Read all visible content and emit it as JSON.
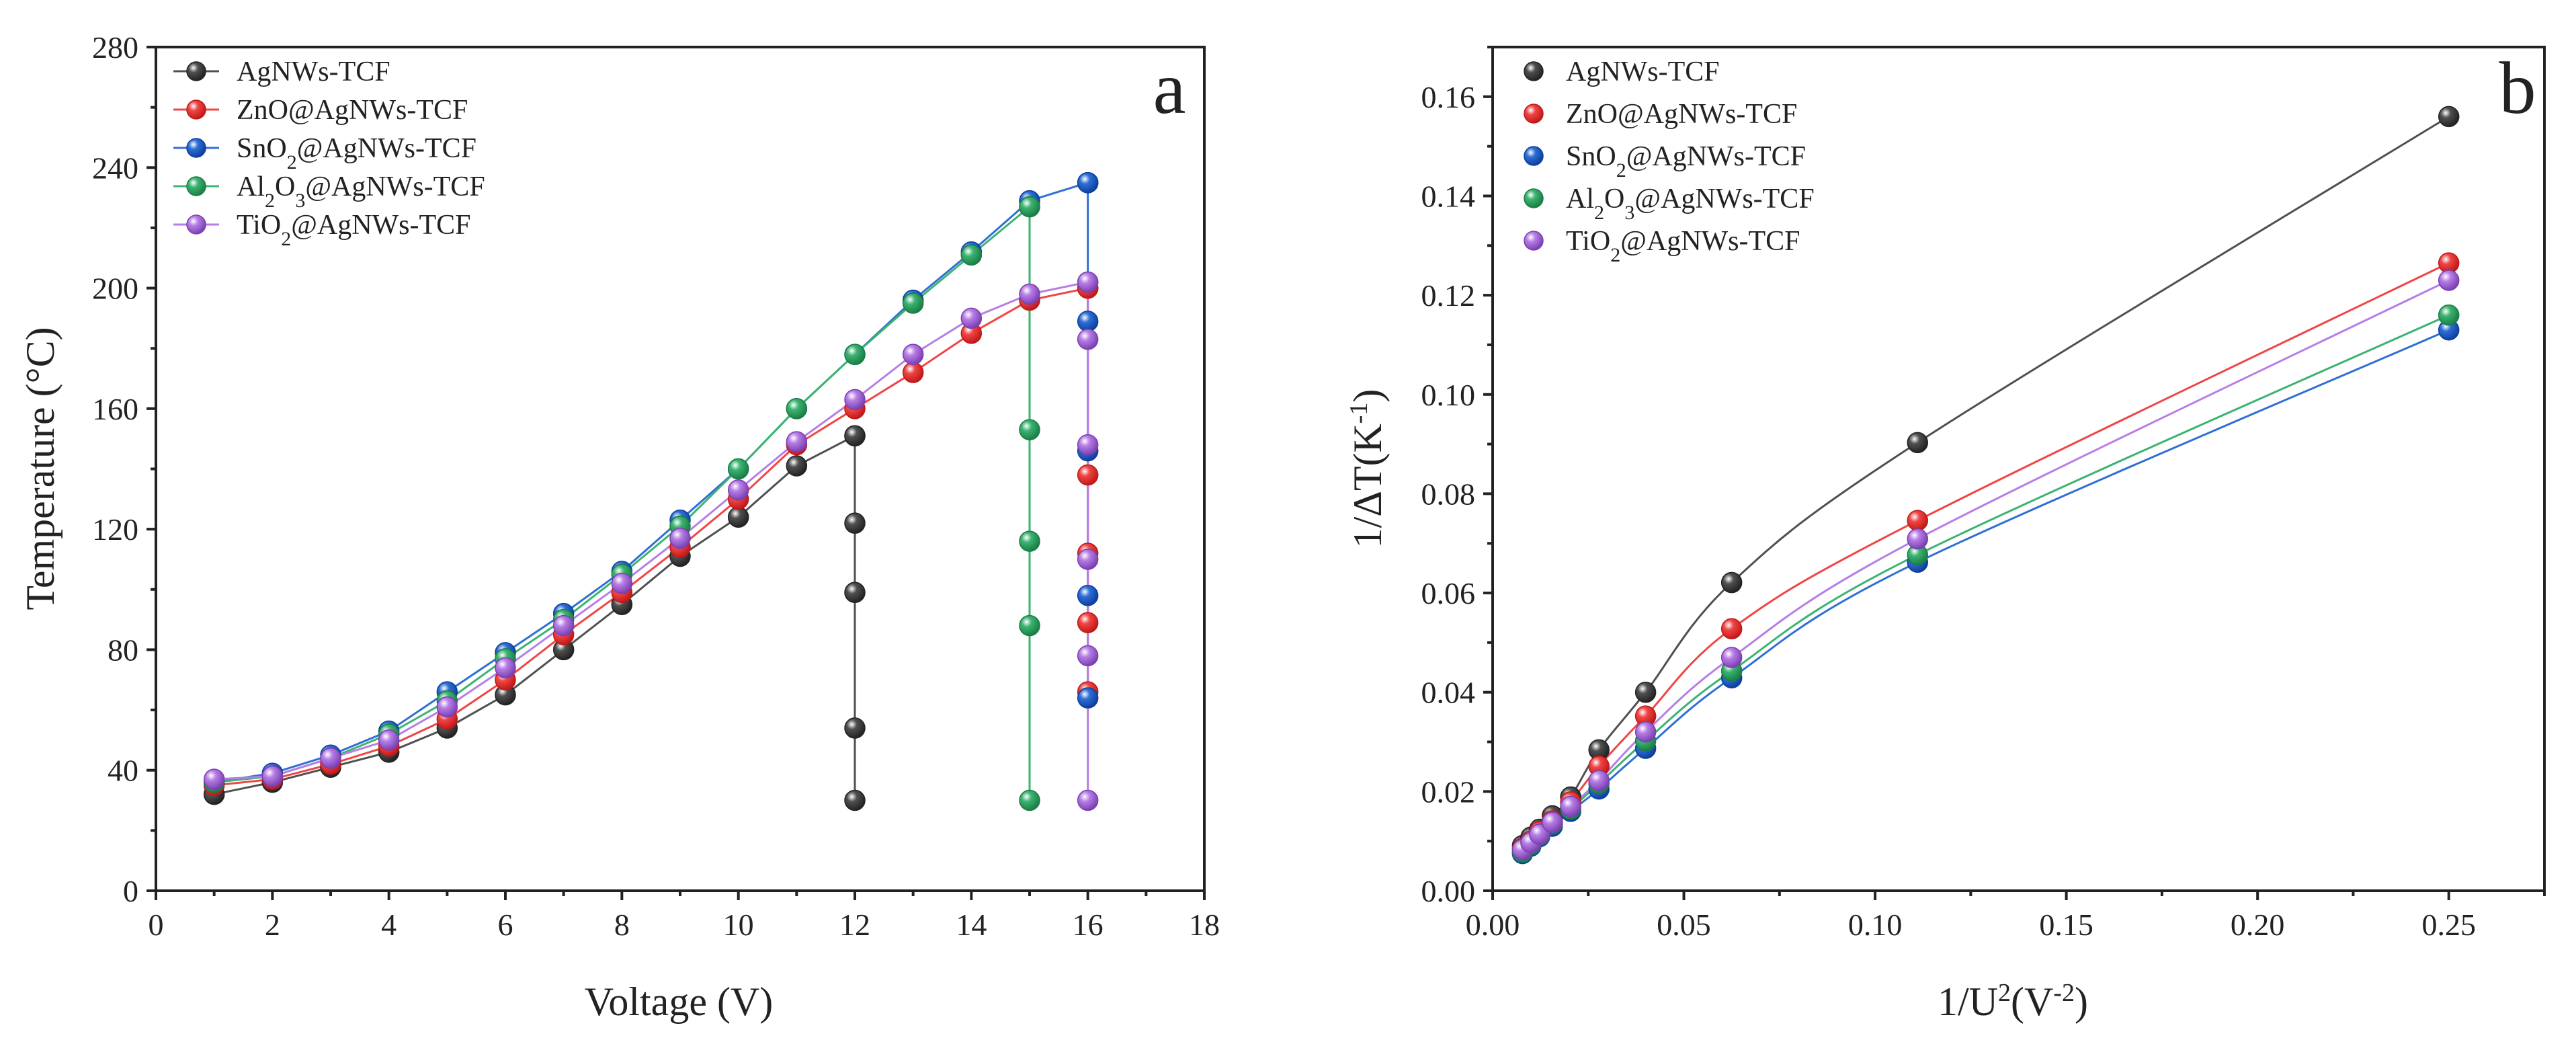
{
  "chart_data": [
    {
      "type": "line",
      "panel_label": "a",
      "xlabel": "Voltage (V)",
      "ylabel": "Temperature (°C)",
      "xlim": [
        0,
        18
      ],
      "ylim": [
        0,
        280
      ],
      "xticks": [
        0,
        2,
        4,
        6,
        8,
        10,
        12,
        14,
        16,
        18
      ],
      "yticks": [
        0,
        40,
        80,
        120,
        160,
        200,
        240,
        280
      ],
      "legend_position": "top-left",
      "series": [
        {
          "name": "AgNWs-TCF",
          "base": "AgNWs-TCF",
          "prefix": "",
          "sub": "",
          "mid": "",
          "sub2": "",
          "color": "#505050",
          "edge": "#222222",
          "points": [
            [
              1,
              32
            ],
            [
              2,
              36
            ],
            [
              3,
              41
            ],
            [
              4,
              46
            ],
            [
              5,
              54
            ],
            [
              6,
              65
            ],
            [
              7,
              80
            ],
            [
              8,
              95
            ],
            [
              9,
              111
            ],
            [
              10,
              124
            ],
            [
              11,
              141
            ],
            [
              12,
              151
            ]
          ],
          "drop": {
            "x": 12,
            "from": 151,
            "to": 30,
            "markers": [
              151,
              122,
              99,
              54,
              30
            ]
          }
        },
        {
          "name": "ZnO@AgNWs-TCF",
          "base": "ZnO@AgNWs-TCF",
          "prefix": "",
          "sub": "",
          "mid": "",
          "sub2": "",
          "color": "#f04545",
          "edge": "#c01818",
          "points": [
            [
              1,
              35
            ],
            [
              2,
              37
            ],
            [
              3,
              42
            ],
            [
              4,
              48
            ],
            [
              5,
              57
            ],
            [
              6,
              70
            ],
            [
              7,
              85
            ],
            [
              8,
              99
            ],
            [
              9,
              114
            ],
            [
              10,
              130
            ],
            [
              11,
              148
            ],
            [
              12,
              160
            ],
            [
              13,
              172
            ],
            [
              14,
              185
            ],
            [
              15,
              196
            ],
            [
              16,
              200
            ]
          ],
          "drop": {
            "x": 16,
            "from": 200,
            "to": 66,
            "markers": [
              200,
              138,
              112,
              89,
              66
            ]
          }
        },
        {
          "name": "SnO2@AgNWs-TCF",
          "base": "",
          "prefix": "SnO",
          "sub": "2",
          "mid": "@AgNWs-TCF",
          "sub2": "",
          "color": "#2f6fd6",
          "edge": "#0c3f9c",
          "points": [
            [
              1,
              36
            ],
            [
              2,
              39
            ],
            [
              3,
              45
            ],
            [
              4,
              53
            ],
            [
              5,
              66
            ],
            [
              6,
              79
            ],
            [
              7,
              92
            ],
            [
              8,
              106
            ],
            [
              9,
              123
            ],
            [
              10,
              140
            ],
            [
              11,
              160
            ],
            [
              12,
              178
            ],
            [
              13,
              196
            ],
            [
              14,
              212
            ],
            [
              15,
              229
            ],
            [
              16,
              235
            ]
          ],
          "drop": {
            "x": 16,
            "from": 235,
            "to": 64,
            "markers": [
              235,
              189,
              146,
              98,
              64
            ]
          }
        },
        {
          "name": "Al2O3@AgNWs-TCF",
          "base": "",
          "prefix": "Al",
          "sub": "2",
          "mid": "O",
          "sub2": "3",
          "color": "#3cb371",
          "edge": "#1a7d45",
          "points": [
            [
              1,
              36
            ],
            [
              2,
              38
            ],
            [
              3,
              44
            ],
            [
              4,
              52
            ],
            [
              5,
              63
            ],
            [
              6,
              77
            ],
            [
              7,
              90
            ],
            [
              8,
              105
            ],
            [
              9,
              121
            ],
            [
              10,
              140
            ],
            [
              11,
              160
            ],
            [
              12,
              178
            ],
            [
              13,
              195
            ],
            [
              14,
              211
            ],
            [
              15,
              227
            ]
          ],
          "drop": {
            "x": 15,
            "from": 227,
            "to": 30,
            "markers": [
              227,
              153,
              116,
              88,
              30
            ]
          }
        },
        {
          "name": "TiO2@AgNWs-TCF",
          "base": "",
          "prefix": "TiO",
          "sub": "2",
          "mid": "@AgNWs-TCF",
          "sub2": "",
          "color": "#b77ee6",
          "edge": "#7a3fb0",
          "points": [
            [
              1,
              37
            ],
            [
              2,
              38
            ],
            [
              3,
              44
            ],
            [
              4,
              50
            ],
            [
              5,
              61
            ],
            [
              6,
              74
            ],
            [
              7,
              88
            ],
            [
              8,
              102
            ],
            [
              9,
              117
            ],
            [
              10,
              133
            ],
            [
              11,
              149
            ],
            [
              12,
              163
            ],
            [
              13,
              178
            ],
            [
              14,
              190
            ],
            [
              15,
              198
            ],
            [
              16,
              202
            ]
          ],
          "drop": {
            "x": 16,
            "from": 202,
            "to": 30,
            "markers": [
              202,
              183,
              148,
              110,
              78,
              30
            ]
          }
        }
      ]
    },
    {
      "type": "scatter",
      "panel_label": "b",
      "xlabel": "1/U2(V-2)",
      "xlabel_parts": {
        "a": "1/U",
        "b": "2",
        "c": "(V",
        "d": "-2",
        "e": ")"
      },
      "ylabel": "1/ΔT(K-1)",
      "ylabel_parts": {
        "a": "1/ΔT(K",
        "b": "-1",
        "c": ")"
      },
      "xlim": [
        0,
        0.275
      ],
      "ylim": [
        0,
        0.17
      ],
      "xticks": [
        "0.00",
        "0.05",
        "0.10",
        "0.15",
        "0.20",
        "0.25"
      ],
      "yticks": [
        "0.00",
        "0.02",
        "0.04",
        "0.06",
        "0.08",
        "0.10",
        "0.12",
        "0.14",
        "0.16"
      ],
      "legend_position": "top-left",
      "x": [
        0.0078,
        0.01,
        0.0123,
        0.0156,
        0.0204,
        0.0278,
        0.04,
        0.0625,
        0.1111,
        0.25
      ],
      "series": [
        {
          "name": "AgNWs-TCF",
          "color": "#505050",
          "edge": "#222222",
          "values": [
            0.0091,
            0.0108,
            0.0124,
            0.0151,
            0.0189,
            0.0284,
            0.04,
            0.0621,
            0.0903,
            0.156
          ]
        },
        {
          "name": "ZnO@AgNWs-TCF",
          "color": "#f04545",
          "edge": "#c01818",
          "values": [
            0.0085,
            0.01,
            0.0119,
            0.0141,
            0.0179,
            0.0251,
            0.0352,
            0.0528,
            0.0746,
            0.1265
          ]
        },
        {
          "name": "SnO2@AgNWs-TCF",
          "color": "#2f6fd6",
          "edge": "#0c3f9c",
          "values": [
            0.0075,
            0.009,
            0.0109,
            0.013,
            0.016,
            0.0205,
            0.0287,
            0.0429,
            0.0662,
            0.113
          ]
        },
        {
          "name": "Al2O3@AgNWs-TCF",
          "color": "#3cb371",
          "edge": "#1a7d45",
          "values": [
            0.0078,
            0.0093,
            0.0112,
            0.0135,
            0.0165,
            0.0216,
            0.0302,
            0.0443,
            0.0677,
            0.116
          ]
        },
        {
          "name": "TiO2@AgNWs-TCF",
          "color": "#b77ee6",
          "edge": "#7a3fb0",
          "values": [
            0.0083,
            0.0097,
            0.0114,
            0.0138,
            0.017,
            0.0222,
            0.032,
            0.047,
            0.0709,
            0.123
          ]
        }
      ]
    }
  ]
}
